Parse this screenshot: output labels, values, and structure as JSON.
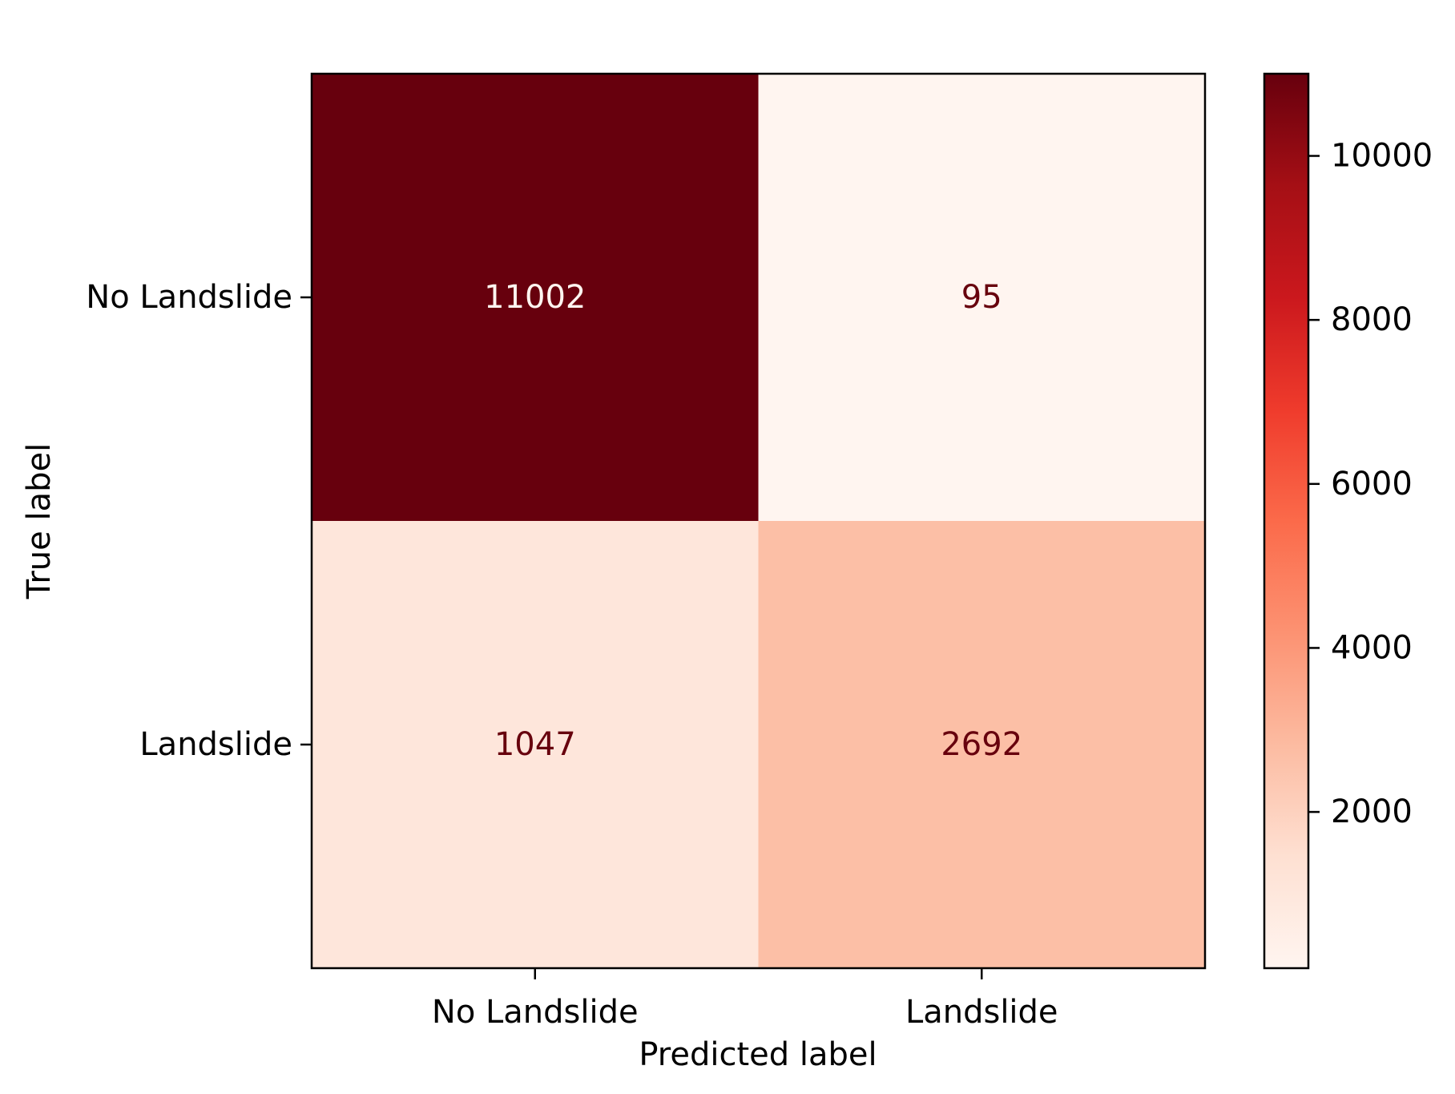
{
  "chart_data": {
    "type": "heatmap",
    "title": "",
    "xlabel": "Predicted label",
    "ylabel": "True label",
    "x_categories": [
      "No Landslide",
      "Landslide"
    ],
    "y_categories": [
      "No Landslide",
      "Landslide"
    ],
    "matrix": [
      [
        11002,
        95
      ],
      [
        1047,
        2692
      ]
    ],
    "matrix_labels": [
      [
        "11002",
        "95"
      ],
      [
        "1047",
        "2692"
      ]
    ],
    "colormap": "Reds",
    "colorbar": {
      "range": [
        95,
        11002
      ],
      "ticks": [
        2000,
        4000,
        6000,
        8000,
        10000
      ],
      "tick_labels": [
        "2000",
        "4000",
        "6000",
        "8000",
        "10000"
      ]
    },
    "text_color_dark": "#67000d",
    "text_color_light": "#fff5f0"
  }
}
